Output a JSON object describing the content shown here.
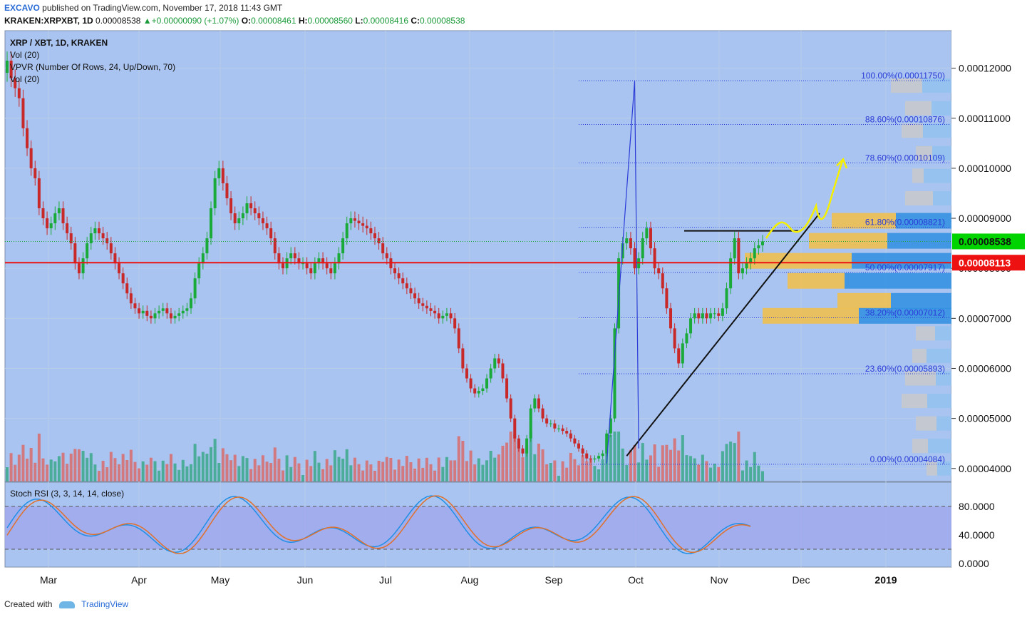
{
  "header": {
    "author": "EXCAVO",
    "published": "published on TradingView.com, November 17, 2018 11:43 GMT",
    "symbol": "KRAKEN:XRPXBT, 1D",
    "last": "0.00008538",
    "change": "▲+0.00000090 (+1.07%)",
    "o_label": "O:",
    "o": "0.00008461",
    "h_label": "H:",
    "h": "0.00008560",
    "l_label": "L:",
    "l": "0.00008416",
    "c_label": "C:",
    "c": "0.00008538"
  },
  "legend": {
    "title": "XRP / XBT, 1D, KRAKEN",
    "vol": "Vol (20)",
    "vpvr": "VPVR (Number Of Rows, 24, Up/Down, 70)",
    "vol2": "Vol (20)"
  },
  "footer": {
    "created": "Created with",
    "brand": "TradingView"
  },
  "colors": {
    "up": "#1aaa3a",
    "down": "#c82828",
    "bg": "#a9c4f0",
    "osc_bg": "#a0a8ee"
  },
  "chart_data": {
    "type": "candlestick",
    "y_axis_ticks": [
      "0.00012000",
      "0.00011000",
      "0.00010000",
      "0.00009000",
      "0.00008000",
      "0.00007000",
      "0.00006000",
      "0.00005000",
      "0.00004000"
    ],
    "ylim": [
      3.74e-05,
      0.0001275
    ],
    "x_axis_labels": [
      "Mar",
      "Apr",
      "May",
      "Jun",
      "Jul",
      "Aug",
      "Sep",
      "Oct",
      "Nov",
      "Dec",
      "2019"
    ],
    "price_tags": [
      {
        "label": "0.00008538",
        "value": 8.538e-05,
        "color": "#00d400"
      },
      {
        "label": "0.00008113",
        "value": 8.113e-05,
        "color": "#ee1111"
      }
    ],
    "horizontal_line": {
      "value": 8.113e-05,
      "color": "#ee1111"
    },
    "fibonacci": [
      {
        "label": "100.00%(0.00011750)",
        "value": 0.0001175
      },
      {
        "label": "88.60%(0.00010876)",
        "value": 0.00010876
      },
      {
        "label": "78.60%(0.00010109)",
        "value": 0.00010109
      },
      {
        "label": "61.80%(0.00008821)",
        "value": 8.821e-05
      },
      {
        "label": "50.00%(0.00007917)",
        "value": 7.917e-05
      },
      {
        "label": "38.20%(0.00007012)",
        "value": 7.012e-05
      },
      {
        "label": "23.60%(0.00005893)",
        "value": 5.893e-05
      },
      {
        "label": "0.00%(0.00004084)",
        "value": 4.084e-05
      }
    ],
    "close_series": [
      0.0001215,
      0.000118,
      0.000116,
      0.000114,
      0.000108,
      0.000104,
      0.0001,
      9.8e-05,
      9.2e-05,
      9e-05,
      8.8e-05,
      8.9e-05,
      9.1e-05,
      9.2e-05,
      8.9e-05,
      8.7e-05,
      8.5e-05,
      8.1e-05,
      7.9e-05,
      8.2e-05,
      8.5e-05,
      8.7e-05,
      8.8e-05,
      8.7e-05,
      8.6e-05,
      8.5e-05,
      8.3e-05,
      8.1e-05,
      7.9e-05,
      7.7e-05,
      7.5e-05,
      7.3e-05,
      7.2e-05,
      7.1e-05,
      7.15e-05,
      7.05e-05,
      7e-05,
      7.1e-05,
      7.15e-05,
      7.2e-05,
      7.1e-05,
      7e-05,
      7.05e-05,
      7.1e-05,
      7.15e-05,
      7.2e-05,
      7.4e-05,
      7.8e-05,
      8.1e-05,
      8.3e-05,
      8.6e-05,
      9.2e-05,
      9.8e-05,
      0.0001,
      9.7e-05,
      9.4e-05,
      9.1e-05,
      8.9e-05,
      9e-05,
      9.1e-05,
      9.3e-05,
      9.2e-05,
      9.1e-05,
      9e-05,
      8.9e-05,
      8.8e-05,
      8.6e-05,
      8.3e-05,
      8.1e-05,
      8e-05,
      8.2e-05,
      8.3e-05,
      8.2e-05,
      8.1e-05,
      8.1e-05,
      8e-05,
      7.9e-05,
      8.1e-05,
      8.2e-05,
      8.1e-05,
      8e-05,
      7.9e-05,
      8.1e-05,
      8.3e-05,
      8.6e-05,
      8.9e-05,
      9e-05,
      8.95e-05,
      8.9e-05,
      8.85e-05,
      8.8e-05,
      8.7e-05,
      8.6e-05,
      8.5e-05,
      8.3e-05,
      8.2e-05,
      8e-05,
      7.9e-05,
      7.8e-05,
      7.7e-05,
      7.6e-05,
      7.5e-05,
      7.4e-05,
      7.3e-05,
      7.25e-05,
      7.2e-05,
      7.15e-05,
      7.1e-05,
      7e-05,
      7.05e-05,
      7.1e-05,
      7e-05,
      6.8e-05,
      6.4e-05,
      6e-05,
      5.8e-05,
      5.6e-05,
      5.5e-05,
      5.55e-05,
      5.6e-05,
      5.8e-05,
      6e-05,
      6.2e-05,
      6.1e-05,
      5.8e-05,
      5.4e-05,
      5e-05,
      4.6e-05,
      4.4e-05,
      4.3e-05,
      4.6e-05,
      5.2e-05,
      5.4e-05,
      5.2e-05,
      5e-05,
      4.9e-05,
      4.9e-05,
      4.8e-05,
      4.8e-05,
      4.75e-05,
      4.7e-05,
      4.6e-05,
      4.5e-05,
      4.4e-05,
      4.3e-05,
      4.2e-05,
      4.18e-05,
      4.2e-05,
      4.25e-05,
      4.3e-05,
      4.7e-05,
      5e-05,
      6.8e-05,
      8.2e-05,
      8.5e-05,
      8.6e-05,
      8.4e-05,
      8e-05,
      8.2e-05,
      8.6e-05,
      8.8e-05,
      8.4e-05,
      8e-05,
      7.9e-05,
      7.6e-05,
      7.2e-05,
      6.8e-05,
      6.4e-05,
      6.1e-05,
      6.5e-05,
      6.7e-05,
      7e-05,
      7.1e-05,
      7e-05,
      7.1e-05,
      7e-05,
      7.1e-05,
      7.1e-05,
      7.05e-05,
      7.2e-05,
      7.6e-05,
      8.2e-05,
      8.6e-05,
      7.9e-05,
      8e-05,
      8.1e-05,
      8.2e-05,
      8.4e-05,
      8.46e-05,
      8.538e-05
    ],
    "volume": {
      "label": "Vol (20)"
    },
    "vpvr": {
      "rows": [
        {
          "price": 8.95e-05,
          "up": 78,
          "down": 90
        },
        {
          "price": 8.55e-05,
          "up": 90,
          "down": 110
        },
        {
          "price": 8.15e-05,
          "up": 140,
          "down": 150
        },
        {
          "price": 7.75e-05,
          "up": 150,
          "down": 80
        },
        {
          "price": 7.35e-05,
          "up": 85,
          "down": 75
        },
        {
          "price": 7.05e-05,
          "up": 130,
          "down": 135
        }
      ]
    },
    "annotations": [
      {
        "type": "trendline",
        "points": [
          [
            4.25e-05,
            155
          ],
          [
            9.1e-05,
            197
          ]
        ]
      },
      {
        "type": "horizontal",
        "value": 8.75e-05
      }
    ],
    "stoch_rsi": {
      "label": "Stoch RSI (3, 3, 14, 14, close)",
      "y_ticks": [
        "80.0000",
        "40.0000",
        "0.0000"
      ],
      "ylim": [
        0,
        100
      ],
      "bands": [
        80,
        20
      ]
    }
  }
}
